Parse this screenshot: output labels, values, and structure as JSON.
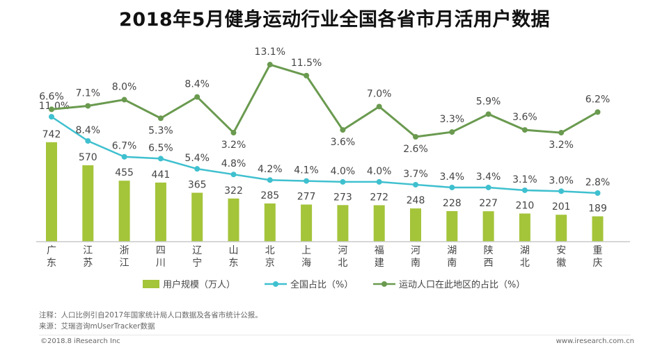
{
  "title": "2018年5月健身运动行业全国各省市月活用户数据",
  "chart_data": {
    "type": "bar+line",
    "categories": [
      "广东",
      "江苏",
      "浙江",
      "四川",
      "辽宁",
      "山东",
      "北京",
      "上海",
      "河北",
      "福建",
      "河南",
      "湖南",
      "陕西",
      "湖北",
      "安徽",
      "重庆"
    ],
    "series": [
      {
        "name": "用户规模（万人）",
        "type": "bar",
        "values": [
          742,
          570,
          455,
          441,
          365,
          322,
          285,
          277,
          273,
          272,
          248,
          228,
          227,
          210,
          201,
          189
        ],
        "labels": [
          "742",
          "570",
          "455",
          "441",
          "365",
          "322",
          "285",
          "277",
          "273",
          "272",
          "248",
          "228",
          "227",
          "210",
          "201",
          "189"
        ],
        "color": "#a4c43a"
      },
      {
        "name": "全国占比（%）",
        "type": "line",
        "values": [
          11.0,
          8.4,
          6.7,
          6.5,
          5.4,
          4.8,
          4.2,
          4.1,
          4.0,
          4.0,
          3.7,
          3.4,
          3.4,
          3.1,
          3.0,
          2.8
        ],
        "labels": [
          "11.0%",
          "8.4%",
          "6.7%",
          "6.5%",
          "5.4%",
          "4.8%",
          "4.2%",
          "4.1%",
          "4.0%",
          "4.0%",
          "3.7%",
          "3.4%",
          "3.4%",
          "3.1%",
          "3.0%",
          "2.8%"
        ],
        "color": "#3fc0cf"
      },
      {
        "name": "运动人口在此地区的占比（%）",
        "type": "line",
        "values": [
          6.6,
          7.1,
          8.0,
          5.3,
          8.4,
          3.2,
          13.1,
          11.5,
          3.6,
          7.0,
          2.6,
          3.3,
          5.9,
          3.6,
          3.2,
          6.2
        ],
        "labels": [
          "6.6%",
          "7.1%",
          "8.0%",
          "5.3%",
          "8.4%",
          "3.2%",
          "13.1%",
          "11.5%",
          "3.6%",
          "7.0%",
          "2.6%",
          "3.3%",
          "5.9%",
          "3.6%",
          "3.2%",
          "6.2%"
        ],
        "color": "#6a9a4f"
      }
    ],
    "legend": [
      "用户规模（万人）",
      "全国占比（%）",
      "运动人口在此地区的占比（%）"
    ],
    "legend_position": "bottom",
    "grid": false
  },
  "notes": {
    "line1": "注释：人口比例引自2017年国家统计局人口数据及各省市统计公报。",
    "line2": "来源：艾瑞咨询mUserTracker数据"
  },
  "footer": {
    "copyright": "©2018.8 iResearch Inc",
    "website": "www.iresearch.com.cn"
  }
}
